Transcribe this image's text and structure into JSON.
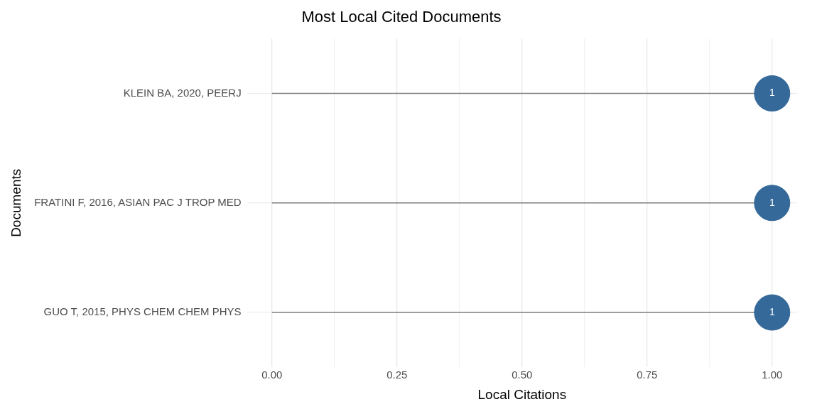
{
  "chart_data": {
    "type": "lollipop",
    "orientation": "horizontal",
    "title": "Most Local Cited Documents",
    "xlabel": "Local Citations",
    "ylabel": "Documents",
    "categories": [
      "KLEIN BA, 2020, PEERJ",
      "FRATINI F, 2016, ASIAN PAC J TROP MED",
      "GUO T, 2015, PHYS CHEM CHEM PHYS"
    ],
    "values": [
      1,
      1,
      1
    ],
    "color": "#35699a",
    "data_labels": true,
    "grid": true,
    "legend": false,
    "marker": "circle",
    "xlim": [
      -0.05,
      1.05
    ],
    "xticks": [
      "0.00",
      {
        "value": 0.125,
        "label": null
      },
      {
        "value": 0.25,
        "label": "0.25"
      },
      {
        "value": 0.375,
        "label": null
      },
      {
        "value": 0.5,
        "label": "0.50"
      },
      {
        "value": 0.625,
        "label": null
      },
      {
        "value": 0.75,
        "label": "0.75"
      },
      {
        "value": 0.875,
        "label": null
      },
      {
        "value": 1,
        "label": "1.00"
      }
    ]
  }
}
